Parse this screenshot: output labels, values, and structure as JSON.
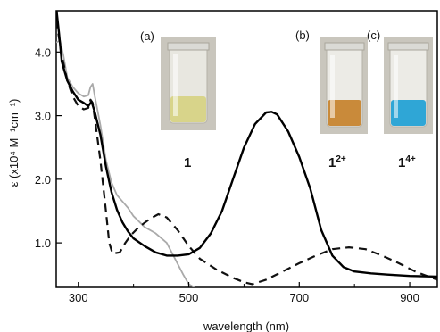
{
  "chart_data": {
    "type": "line",
    "xlabel": "wavelength (nm)",
    "ylabel": "ε (x10⁴ M⁻¹cm⁻¹)",
    "xlim": [
      260,
      950
    ],
    "ylim": [
      0.3,
      4.65
    ],
    "x_ticks": [
      300,
      500,
      700,
      900
    ],
    "y_ticks": [
      1.0,
      2.0,
      3.0,
      4.0
    ],
    "x_tick_labels": [
      "300",
      "500",
      "700",
      "900"
    ],
    "y_tick_labels": [
      "1.0",
      "2.0",
      "3.0",
      "4.0"
    ],
    "grid": false,
    "series": [
      {
        "name": "1",
        "color": "#aaaaaa",
        "style": "solid",
        "points": [
          [
            260,
            4.15
          ],
          [
            267,
            4.18
          ],
          [
            273,
            3.95
          ],
          [
            280,
            3.6
          ],
          [
            290,
            3.45
          ],
          [
            300,
            3.35
          ],
          [
            310,
            3.3
          ],
          [
            318,
            3.32
          ],
          [
            322,
            3.45
          ],
          [
            326,
            3.5
          ],
          [
            330,
            3.3
          ],
          [
            340,
            2.85
          ],
          [
            350,
            2.3
          ],
          [
            360,
            1.95
          ],
          [
            370,
            1.75
          ],
          [
            380,
            1.65
          ],
          [
            390,
            1.55
          ],
          [
            400,
            1.42
          ],
          [
            420,
            1.25
          ],
          [
            440,
            1.15
          ],
          [
            460,
            1.0
          ],
          [
            475,
            0.75
          ],
          [
            490,
            0.5
          ],
          [
            500,
            0.35
          ],
          [
            510,
            0.3
          ]
        ]
      },
      {
        "name": "1²⁺",
        "color": "#111111",
        "style": "dashed",
        "points": [
          [
            260,
            4.5
          ],
          [
            270,
            3.95
          ],
          [
            280,
            3.55
          ],
          [
            290,
            3.3
          ],
          [
            300,
            3.15
          ],
          [
            310,
            3.1
          ],
          [
            318,
            3.12
          ],
          [
            322,
            3.25
          ],
          [
            326,
            3.2
          ],
          [
            330,
            2.95
          ],
          [
            340,
            2.3
          ],
          [
            350,
            1.5
          ],
          [
            356,
            1.0
          ],
          [
            362,
            0.83
          ],
          [
            375,
            0.85
          ],
          [
            385,
            1.0
          ],
          [
            395,
            1.12
          ],
          [
            410,
            1.25
          ],
          [
            430,
            1.38
          ],
          [
            445,
            1.45
          ],
          [
            460,
            1.4
          ],
          [
            480,
            1.2
          ],
          [
            500,
            0.95
          ],
          [
            520,
            0.75
          ],
          [
            550,
            0.58
          ],
          [
            580,
            0.45
          ],
          [
            600,
            0.38
          ],
          [
            615,
            0.35
          ],
          [
            640,
            0.42
          ],
          [
            670,
            0.55
          ],
          [
            700,
            0.68
          ],
          [
            730,
            0.8
          ],
          [
            760,
            0.9
          ],
          [
            790,
            0.93
          ],
          [
            820,
            0.9
          ],
          [
            850,
            0.8
          ],
          [
            880,
            0.68
          ],
          [
            910,
            0.55
          ],
          [
            940,
            0.45
          ],
          [
            950,
            0.42
          ]
        ]
      },
      {
        "name": "1⁴⁺",
        "color": "#000000",
        "style": "solid",
        "points": [
          [
            260,
            4.7
          ],
          [
            265,
            4.3
          ],
          [
            270,
            3.85
          ],
          [
            280,
            3.55
          ],
          [
            290,
            3.38
          ],
          [
            300,
            3.25
          ],
          [
            310,
            3.2
          ],
          [
            318,
            3.15
          ],
          [
            324,
            3.22
          ],
          [
            330,
            3.05
          ],
          [
            340,
            2.7
          ],
          [
            350,
            2.2
          ],
          [
            360,
            1.8
          ],
          [
            370,
            1.52
          ],
          [
            380,
            1.32
          ],
          [
            390,
            1.18
          ],
          [
            400,
            1.07
          ],
          [
            420,
            0.95
          ],
          [
            440,
            0.85
          ],
          [
            460,
            0.8
          ],
          [
            480,
            0.8
          ],
          [
            500,
            0.82
          ],
          [
            520,
            0.92
          ],
          [
            540,
            1.15
          ],
          [
            560,
            1.5
          ],
          [
            580,
            2.0
          ],
          [
            600,
            2.5
          ],
          [
            620,
            2.87
          ],
          [
            640,
            3.05
          ],
          [
            650,
            3.06
          ],
          [
            660,
            3.02
          ],
          [
            680,
            2.75
          ],
          [
            700,
            2.35
          ],
          [
            720,
            1.85
          ],
          [
            740,
            1.2
          ],
          [
            760,
            0.8
          ],
          [
            780,
            0.62
          ],
          [
            800,
            0.55
          ],
          [
            830,
            0.52
          ],
          [
            860,
            0.5
          ],
          [
            900,
            0.48
          ],
          [
            950,
            0.47
          ]
        ]
      }
    ],
    "annotations": {
      "panel_a": "(a)",
      "panel_b": "(b)",
      "panel_c": "(c)",
      "compound_a": "1",
      "compound_b": "1",
      "compound_b_charge": "2+",
      "compound_c": "1",
      "compound_c_charge": "4+"
    },
    "vial_colors": {
      "a_liquid": "#d8d48a",
      "b_liquid": "#c98a3a",
      "c_liquid": "#2fa6d6"
    }
  }
}
